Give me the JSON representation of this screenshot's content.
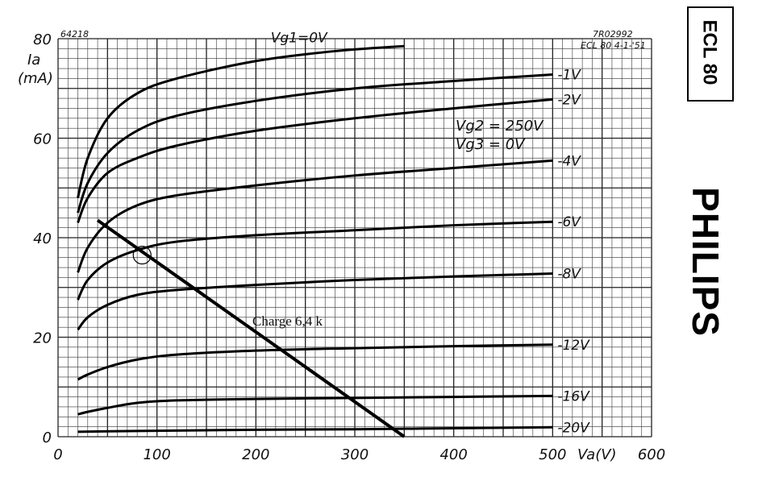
{
  "chart_data": {
    "type": "line",
    "figure_id": "64218",
    "doc_ref": "7R02992",
    "doc_date": "ECL 80 4-1-'51",
    "ylabel_sym": "Ia",
    "ylabel_unit": "(mA)",
    "xlabel": "Va(V)",
    "xlim": [
      0,
      600
    ],
    "ylim": [
      0,
      80
    ],
    "x_ticks": [
      "0",
      "100",
      "200",
      "300",
      "400",
      "500",
      "600"
    ],
    "y_ticks": [
      "0",
      "20",
      "40",
      "60",
      "80"
    ],
    "grid": true,
    "conditions": [
      "Vg2 = 250V",
      "Vg3 = 0V"
    ],
    "series": [
      {
        "name": "Vg1=0V",
        "points": [
          [
            20,
            48
          ],
          [
            30,
            56
          ],
          [
            50,
            64
          ],
          [
            80,
            69
          ],
          [
            120,
            72
          ],
          [
            200,
            75.5
          ],
          [
            280,
            77.5
          ],
          [
            350,
            78.5
          ]
        ]
      },
      {
        "name": "-1V",
        "points": [
          [
            20,
            45
          ],
          [
            30,
            51
          ],
          [
            50,
            57
          ],
          [
            80,
            61.5
          ],
          [
            120,
            64.5
          ],
          [
            200,
            67.5
          ],
          [
            300,
            70
          ],
          [
            400,
            71.5
          ],
          [
            500,
            72.8
          ]
        ]
      },
      {
        "name": "-2V",
        "points": [
          [
            20,
            43
          ],
          [
            30,
            48
          ],
          [
            50,
            53
          ],
          [
            80,
            56
          ],
          [
            120,
            58.5
          ],
          [
            200,
            61.5
          ],
          [
            300,
            64
          ],
          [
            400,
            66
          ],
          [
            500,
            67.8
          ]
        ]
      },
      {
        "name": "-4V",
        "points": [
          [
            20,
            33
          ],
          [
            30,
            38
          ],
          [
            50,
            43
          ],
          [
            80,
            46.5
          ],
          [
            120,
            48.5
          ],
          [
            200,
            50.5
          ],
          [
            300,
            52.5
          ],
          [
            400,
            54
          ],
          [
            500,
            55.5
          ]
        ]
      },
      {
        "name": "-6V",
        "points": [
          [
            20,
            27.5
          ],
          [
            30,
            31.5
          ],
          [
            50,
            35
          ],
          [
            80,
            37.5
          ],
          [
            120,
            39.2
          ],
          [
            200,
            40.5
          ],
          [
            300,
            41.5
          ],
          [
            400,
            42.5
          ],
          [
            500,
            43.2
          ]
        ]
      },
      {
        "name": "-8V",
        "points": [
          [
            20,
            21.5
          ],
          [
            30,
            24
          ],
          [
            50,
            26.5
          ],
          [
            80,
            28.5
          ],
          [
            120,
            29.5
          ],
          [
            200,
            30.5
          ],
          [
            300,
            31.5
          ],
          [
            400,
            32.2
          ],
          [
            500,
            32.8
          ]
        ]
      },
      {
        "name": "-12V",
        "points": [
          [
            20,
            11.5
          ],
          [
            30,
            12.5
          ],
          [
            50,
            14
          ],
          [
            80,
            15.5
          ],
          [
            120,
            16.5
          ],
          [
            200,
            17.3
          ],
          [
            300,
            17.8
          ],
          [
            400,
            18.2
          ],
          [
            500,
            18.5
          ]
        ]
      },
      {
        "name": "-16V",
        "points": [
          [
            20,
            4.5
          ],
          [
            30,
            5
          ],
          [
            50,
            5.8
          ],
          [
            80,
            6.8
          ],
          [
            120,
            7.3
          ],
          [
            200,
            7.6
          ],
          [
            300,
            7.8
          ],
          [
            400,
            8
          ],
          [
            500,
            8.2
          ]
        ]
      },
      {
        "name": "-20V",
        "points": [
          [
            20,
            1
          ],
          [
            100,
            1.2
          ],
          [
            200,
            1.4
          ],
          [
            300,
            1.5
          ],
          [
            400,
            1.7
          ],
          [
            500,
            1.9
          ]
        ]
      }
    ],
    "load_line": {
      "label": "Charge 6,4 k",
      "points": [
        [
          40,
          43.5
        ],
        [
          350,
          0
        ]
      ]
    },
    "operating_point": [
      85,
      36.5
    ]
  },
  "brand": {
    "model": "ECL 80",
    "maker": "PHILIPS"
  }
}
